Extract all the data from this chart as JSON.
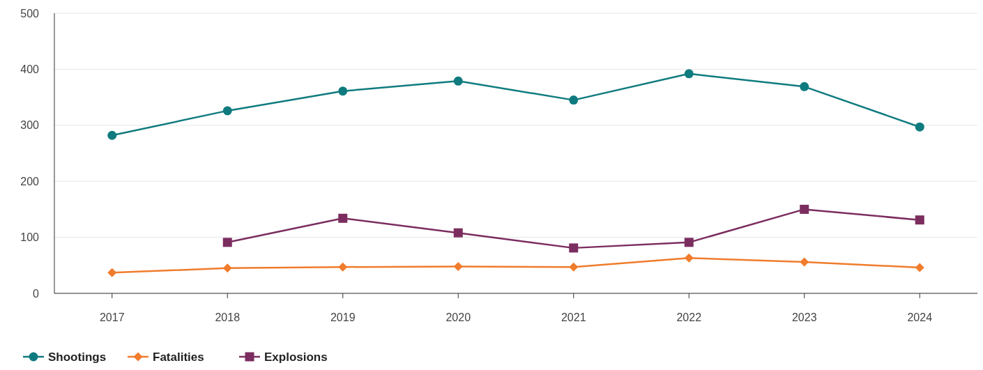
{
  "chart_data": {
    "type": "line",
    "categories": [
      "2017",
      "2018",
      "2019",
      "2020",
      "2021",
      "2022",
      "2023",
      "2024"
    ],
    "series": [
      {
        "name": "Shootings",
        "color": "#0f7b7f",
        "marker": "circle",
        "values": [
          282,
          326,
          361,
          379,
          345,
          392,
          369,
          297
        ]
      },
      {
        "name": "Fatalities",
        "color": "#f07c2c",
        "marker": "diamond",
        "values": [
          37,
          45,
          47,
          48,
          47,
          63,
          56,
          46
        ]
      },
      {
        "name": "Explosions",
        "color": "#7b2d5f",
        "marker": "square",
        "values": [
          null,
          91,
          134,
          108,
          81,
          91,
          150,
          131
        ]
      }
    ],
    "ylim": [
      0,
      500
    ],
    "yticks": [
      0,
      100,
      200,
      300,
      400,
      500
    ],
    "grid": "y",
    "legend": "bottom left",
    "line_style": "solid"
  }
}
